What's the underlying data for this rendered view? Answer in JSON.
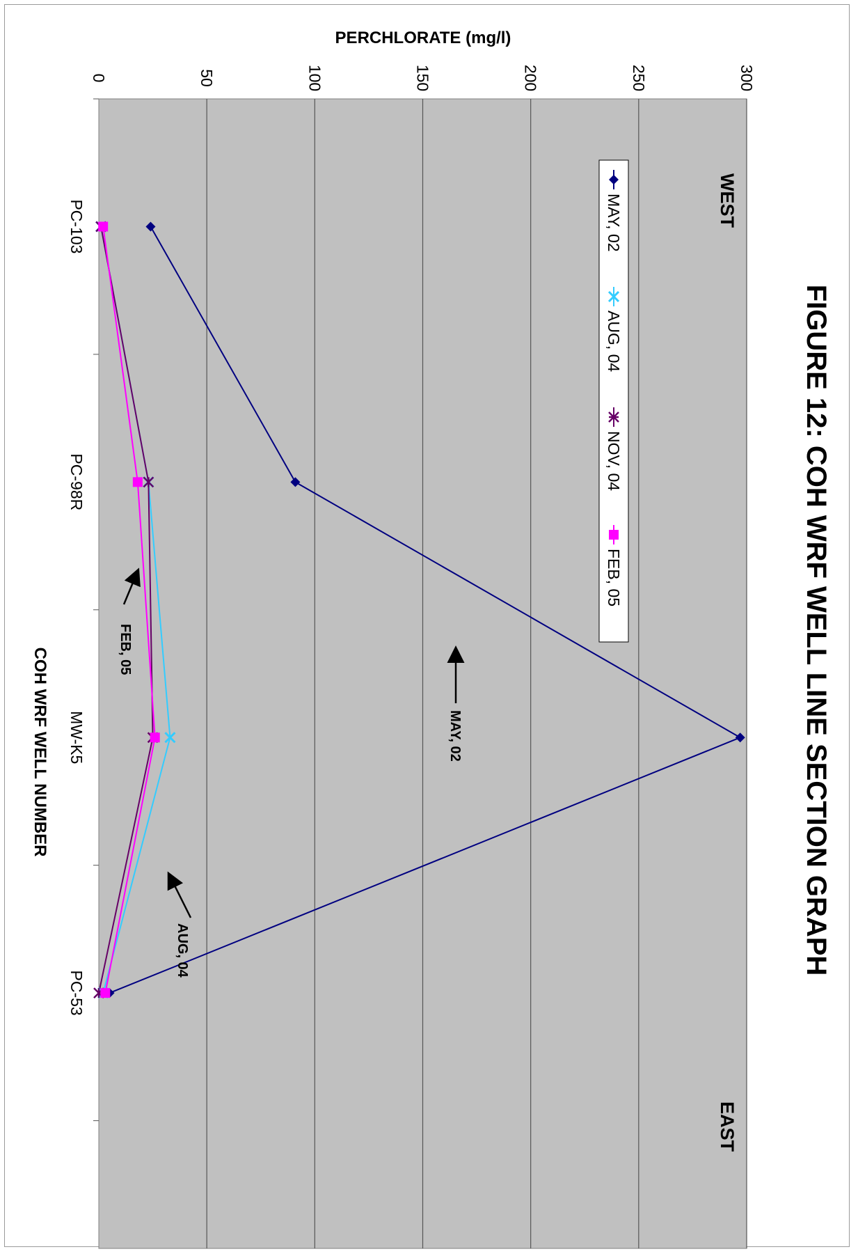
{
  "chart_data": {
    "type": "line",
    "orientation": "rotated-90-clockwise",
    "title": "FIGURE 12: COH WRF WELL LINE SECTION GRAPH",
    "xlabel": "COH WRF WELL NUMBER",
    "ylabel": "PERCHLORATE (mg/l)",
    "ylim": [
      0,
      300
    ],
    "yticks": [
      0,
      50,
      100,
      150,
      200,
      250,
      300
    ],
    "grid": true,
    "legend_position": "top-left",
    "categories": [
      "PC-103",
      "PC-98R",
      "MW-K5",
      "PC-53"
    ],
    "side_labels": {
      "start": "WEST",
      "end": "EAST"
    },
    "series": [
      {
        "name": "MAY, 02",
        "values": [
          24,
          91,
          297,
          5
        ],
        "color": "#000080",
        "marker": "diamond"
      },
      {
        "name": "AUG, 04",
        "values": [
          1,
          23,
          33,
          2
        ],
        "color": "#33ccff",
        "marker": "x"
      },
      {
        "name": "NOV, 04",
        "values": [
          1,
          23,
          25,
          0
        ],
        "color": "#660066",
        "marker": "star"
      },
      {
        "name": "FEB, 05",
        "values": [
          2,
          18,
          26,
          3
        ],
        "color": "#ff00ff",
        "marker": "square"
      }
    ],
    "annotations": [
      {
        "text": "MAY, 02",
        "series": "MAY, 02"
      },
      {
        "text": "FEB, 05",
        "series": "FEB, 05"
      },
      {
        "text": "AUG, 04",
        "series": "AUG, 04"
      }
    ],
    "plot_background": "#c0c0c0"
  }
}
